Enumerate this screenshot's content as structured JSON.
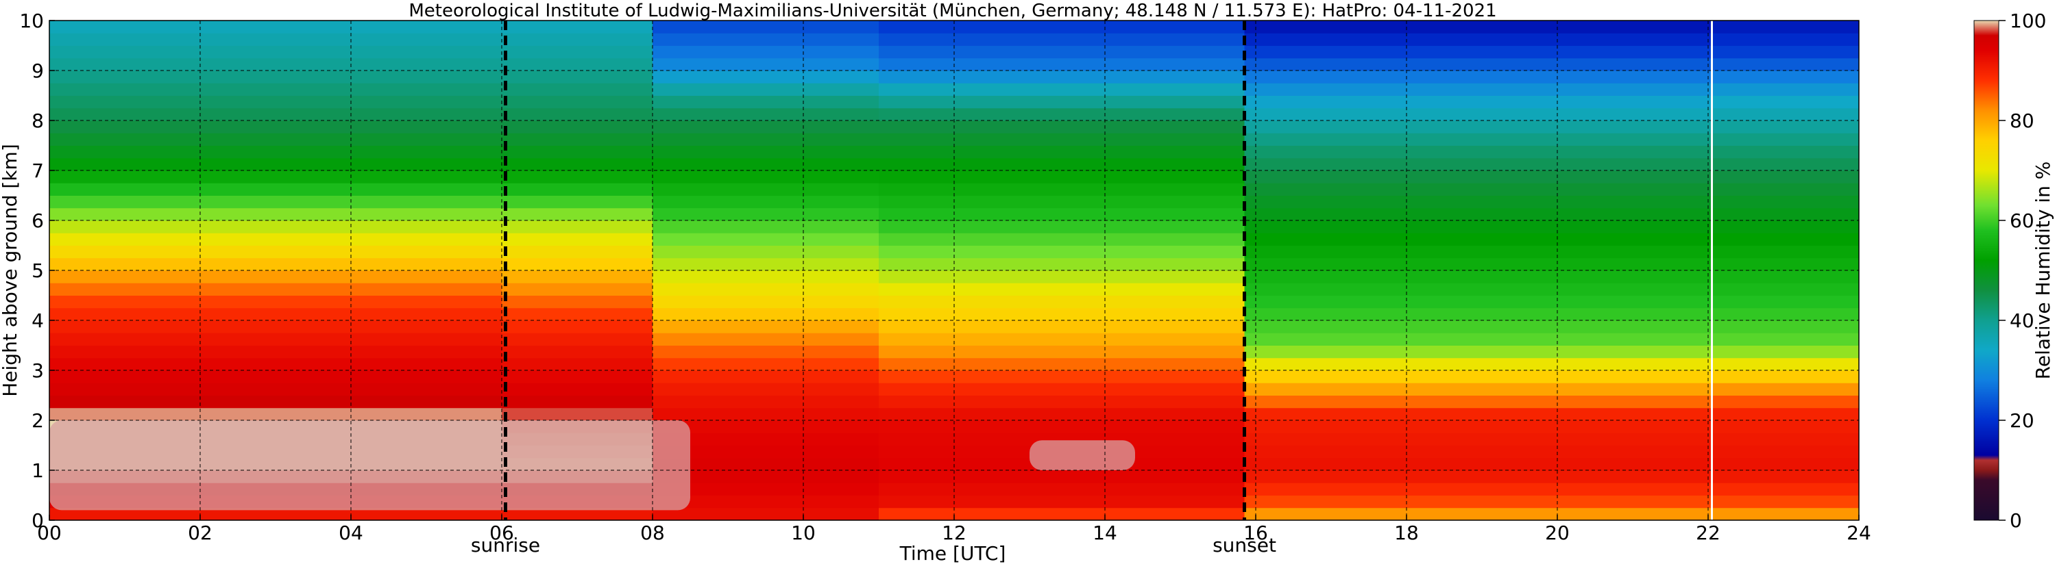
{
  "chart_data": {
    "type": "heatmap",
    "title": "Meteorological Institute of Ludwig-Maximilians-Universität (München, Germany; 48.148 N / 11.573 E):    HatPro: 04-11-2021",
    "xlabel": "Time [UTC]",
    "ylabel": "Height above ground [km]",
    "xlim": [
      0,
      24
    ],
    "ylim": [
      0,
      10
    ],
    "xticks": [
      0,
      2,
      4,
      6,
      8,
      10,
      12,
      14,
      16,
      18,
      20,
      22,
      24
    ],
    "xtick_labels": [
      "00",
      "02",
      "04",
      "06",
      "08",
      "10",
      "12",
      "14",
      "16",
      "18",
      "20",
      "22",
      "24"
    ],
    "yticks": [
      0,
      1,
      2,
      3,
      4,
      5,
      6,
      7,
      8,
      9,
      10
    ],
    "ytick_labels": [
      "0",
      "1",
      "2",
      "3",
      "4",
      "5",
      "6",
      "7",
      "8",
      "9",
      "10"
    ],
    "grid": true,
    "colorbar": {
      "label": "Relative Humidity in %",
      "range": [
        0,
        100
      ],
      "ticks": [
        0,
        20,
        40,
        60,
        80,
        100
      ],
      "tick_labels": [
        "0",
        "20",
        "40",
        "60",
        "80",
        "100"
      ]
    },
    "markers": [
      {
        "x": 6.05,
        "label": "sunrise",
        "color": "#000000",
        "style": "dashed"
      },
      {
        "x": 15.85,
        "label": "sunset",
        "color": "#000000",
        "style": "dashed"
      },
      {
        "x": 22.05,
        "label": "",
        "color": "#ffffff",
        "style": "solid"
      }
    ],
    "profiles": [
      {
        "t_start": 0.0,
        "t_end": 6.0,
        "rh_by_height_km": [
          [
            0,
            90
          ],
          [
            0.5,
            95
          ],
          [
            1,
            100
          ],
          [
            2,
            100
          ],
          [
            2.5,
            96
          ],
          [
            3.5,
            92
          ],
          [
            4.3,
            88
          ],
          [
            4.8,
            82
          ],
          [
            5.3,
            75
          ],
          [
            6.0,
            66
          ],
          [
            6.4,
            60
          ],
          [
            7,
            52
          ],
          [
            8,
            45
          ],
          [
            9,
            40
          ],
          [
            10,
            35
          ]
        ]
      },
      {
        "t_start": 6.0,
        "t_end": 8.0,
        "rh_by_height_km": [
          [
            0,
            90
          ],
          [
            0.5,
            95
          ],
          [
            1,
            100
          ],
          [
            2,
            99
          ],
          [
            2.5,
            95
          ],
          [
            3.5,
            91
          ],
          [
            4.2,
            87
          ],
          [
            4.8,
            80
          ],
          [
            5.3,
            74
          ],
          [
            6.0,
            66
          ],
          [
            6.5,
            58
          ],
          [
            7,
            52
          ],
          [
            8,
            45
          ],
          [
            9,
            40
          ],
          [
            10,
            35
          ]
        ]
      },
      {
        "t_start": 8.0,
        "t_end": 11.0,
        "rh_by_height_km": [
          [
            0,
            92
          ],
          [
            1,
            95
          ],
          [
            2,
            93
          ],
          [
            2.8,
            90
          ],
          [
            3.5,
            84
          ],
          [
            4.2,
            76
          ],
          [
            4.8,
            70
          ],
          [
            5.5,
            64
          ],
          [
            6.2,
            58
          ],
          [
            7,
            52
          ],
          [
            8,
            45
          ],
          [
            8.5,
            40
          ],
          [
            9,
            30
          ],
          [
            10,
            22
          ]
        ]
      },
      {
        "t_start": 11.0,
        "t_end": 15.85,
        "rh_by_height_km": [
          [
            0,
            85
          ],
          [
            0.3,
            92
          ],
          [
            1,
            94
          ],
          [
            2,
            93
          ],
          [
            2.8,
            88
          ],
          [
            3.5,
            80
          ],
          [
            4.3,
            74
          ],
          [
            5,
            66
          ],
          [
            6,
            58
          ],
          [
            7,
            52
          ],
          [
            8,
            45
          ],
          [
            8.5,
            38
          ],
          [
            9,
            28
          ],
          [
            10,
            20
          ]
        ]
      },
      {
        "t_start": 15.85,
        "t_end": 22.05,
        "rh_by_height_km": [
          [
            0,
            78
          ],
          [
            0.3,
            86
          ],
          [
            1,
            92
          ],
          [
            2.1,
            90
          ],
          [
            2.4,
            84
          ],
          [
            3,
            74
          ],
          [
            3.5,
            62
          ],
          [
            5,
            55
          ],
          [
            6.5,
            48
          ],
          [
            7.5,
            42
          ],
          [
            8.5,
            32
          ],
          [
            9.3,
            22
          ],
          [
            10,
            15
          ]
        ]
      },
      {
        "t_start": 22.05,
        "t_end": 24.0,
        "rh_by_height_km": [
          [
            0,
            78
          ],
          [
            0.3,
            86
          ],
          [
            1,
            92
          ],
          [
            2.1,
            90
          ],
          [
            2.5,
            84
          ],
          [
            3,
            74
          ],
          [
            3.5,
            62
          ],
          [
            5,
            55
          ],
          [
            6.5,
            48
          ],
          [
            7.5,
            42
          ],
          [
            8.5,
            33
          ],
          [
            9.3,
            22
          ],
          [
            10,
            16
          ]
        ]
      }
    ],
    "saturated_regions": [
      {
        "t_start": 0.0,
        "t_end": 8.5,
        "h_start": 0.2,
        "h_end": 2.0,
        "rh": 100
      },
      {
        "t_start": 13.0,
        "t_end": 14.4,
        "h_start": 1.0,
        "h_end": 1.6,
        "rh": 100
      }
    ]
  }
}
